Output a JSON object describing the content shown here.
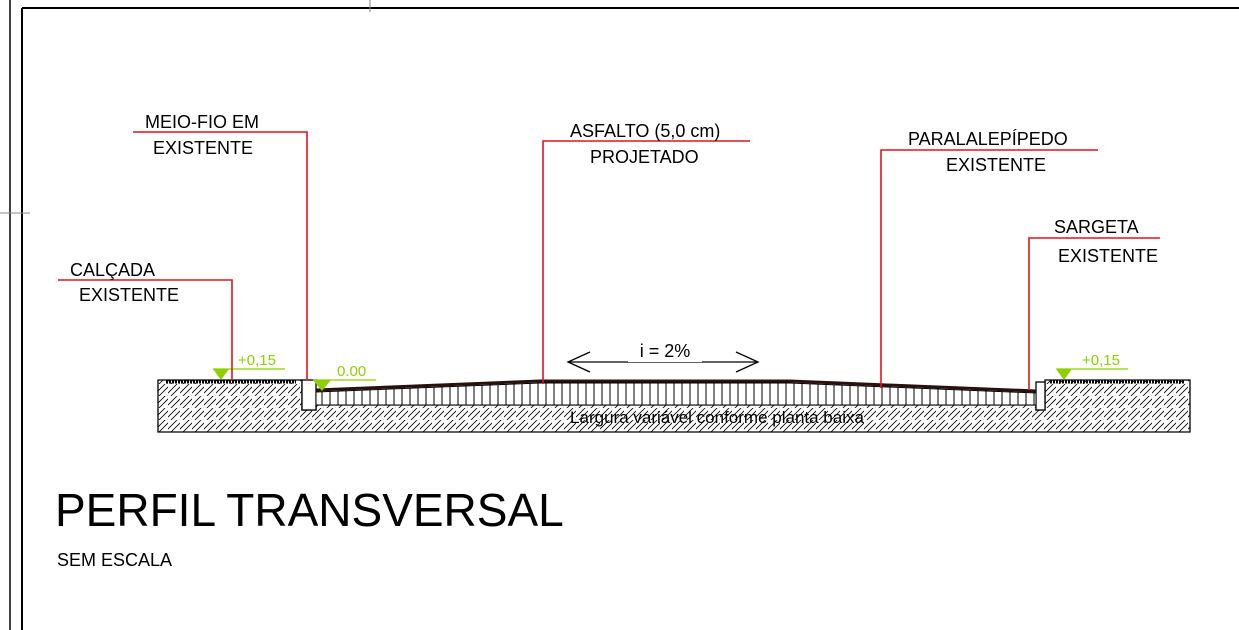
{
  "drawing": {
    "title": "PERFIL TRANSVERSAL",
    "subtitle": "SEM ESCALA",
    "callouts": {
      "calcada": [
        "CALÇADA",
        "EXISTENTE"
      ],
      "meio_fio": [
        "MEIO-FIO EM",
        "EXISTENTE"
      ],
      "asfalto": [
        "ASFALTO (5,0 cm)",
        "PROJETADO"
      ],
      "paralelepipedo": [
        "PARALALEPÍPEDO",
        "EXISTENTE"
      ],
      "sargeta": [
        "SARGETA",
        "EXISTENTE"
      ]
    },
    "elevations": {
      "left_sidewalk": "+0,15",
      "gutter": "0.00",
      "right_sidewalk": "+0,15"
    },
    "slope_label": "i = 2%",
    "width_note": "Largura variável conforme planta baixa",
    "colors": {
      "leader": "#e0141e",
      "elevation": "#8fcf00",
      "line": "#000000"
    }
  }
}
